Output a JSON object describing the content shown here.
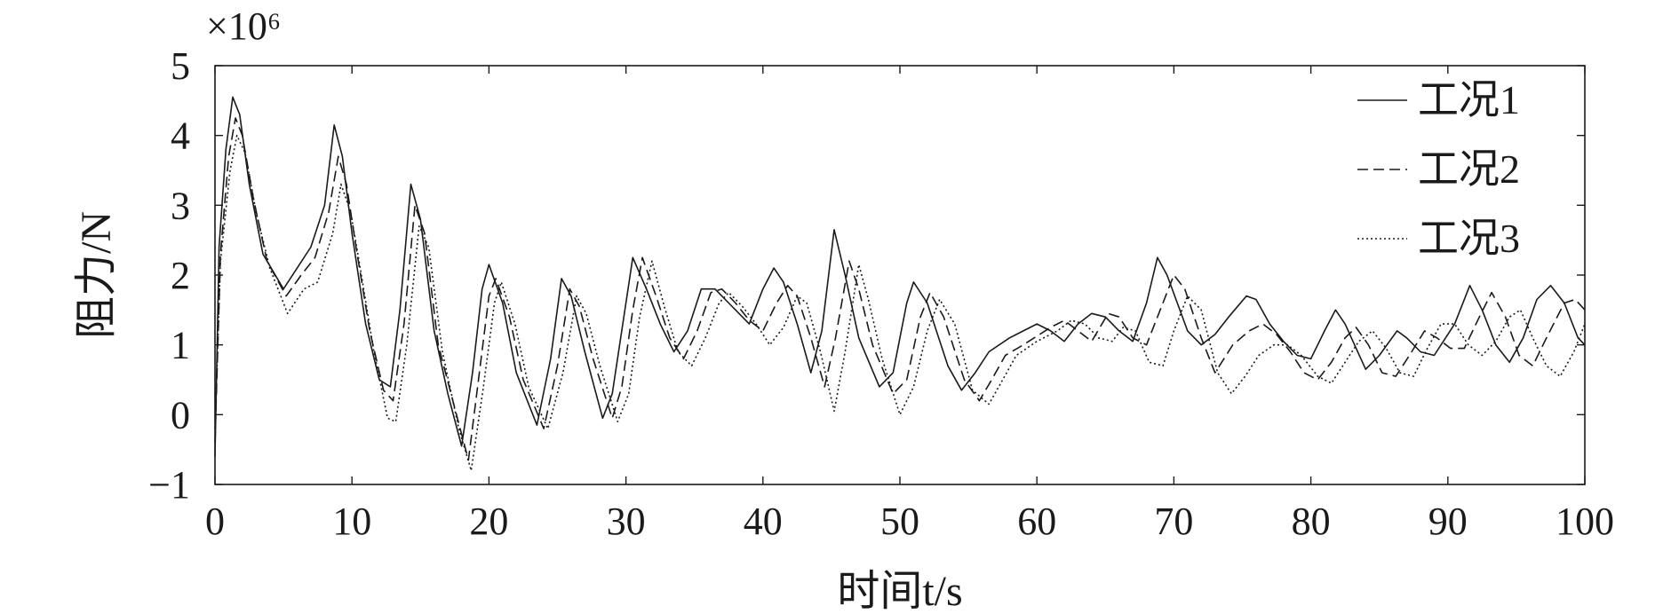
{
  "chart_data": {
    "type": "line",
    "title": "",
    "xlabel": "时间t/s",
    "ylabel": "阻力/N",
    "y_multiplier": "×10⁶",
    "xlim": [
      0,
      100
    ],
    "ylim": [
      -1,
      5
    ],
    "xticks": [
      "0",
      "10",
      "20",
      "30",
      "40",
      "50",
      "60",
      "70",
      "80",
      "90",
      "100"
    ],
    "yticks": [
      "−1",
      "0",
      "1",
      "2",
      "3",
      "4",
      "5"
    ],
    "grid": false,
    "legend_position": "top-right",
    "series": [
      {
        "name": "工况1",
        "style": "solid",
        "points": [
          [
            0,
            -0.6
          ],
          [
            0.3,
            2.4
          ],
          [
            0.8,
            3.8
          ],
          [
            1.3,
            4.55
          ],
          [
            1.8,
            4.3
          ],
          [
            2.5,
            3.3
          ],
          [
            3.5,
            2.3
          ],
          [
            5,
            1.8
          ],
          [
            6,
            2.1
          ],
          [
            7,
            2.4
          ],
          [
            8,
            3.0
          ],
          [
            8.7,
            4.15
          ],
          [
            9.3,
            3.7
          ],
          [
            10,
            2.6
          ],
          [
            11,
            1.3
          ],
          [
            12,
            0.5
          ],
          [
            12.8,
            0.4
          ],
          [
            13.5,
            1.5
          ],
          [
            14.3,
            3.3
          ],
          [
            15,
            2.8
          ],
          [
            16,
            1.2
          ],
          [
            17,
            0.3
          ],
          [
            18,
            -0.45
          ],
          [
            18.8,
            0.6
          ],
          [
            19.5,
            1.8
          ],
          [
            20,
            2.15
          ],
          [
            21,
            1.6
          ],
          [
            22,
            0.6
          ],
          [
            23.5,
            -0.15
          ],
          [
            24.5,
            0.8
          ],
          [
            25.3,
            1.95
          ],
          [
            26,
            1.7
          ],
          [
            27,
            0.9
          ],
          [
            28.3,
            -0.05
          ],
          [
            29,
            0.3
          ],
          [
            30,
            1.6
          ],
          [
            30.5,
            2.25
          ],
          [
            31.5,
            1.8
          ],
          [
            32.5,
            1.3
          ],
          [
            33.5,
            0.9
          ],
          [
            34.5,
            1.2
          ],
          [
            35.5,
            1.8
          ],
          [
            36.5,
            1.8
          ],
          [
            37.5,
            1.6
          ],
          [
            38.5,
            1.4
          ],
          [
            39,
            1.3
          ],
          [
            40,
            1.8
          ],
          [
            40.8,
            2.1
          ],
          [
            41.5,
            1.9
          ],
          [
            42.5,
            1.3
          ],
          [
            43.5,
            0.6
          ],
          [
            44.3,
            1.2
          ],
          [
            45.2,
            2.65
          ],
          [
            46,
            2.0
          ],
          [
            47,
            1.1
          ],
          [
            48.5,
            0.4
          ],
          [
            49.5,
            0.6
          ],
          [
            50.5,
            1.6
          ],
          [
            51,
            1.9
          ],
          [
            52,
            1.6
          ],
          [
            53.5,
            0.7
          ],
          [
            54.5,
            0.35
          ],
          [
            55.5,
            0.6
          ],
          [
            56.5,
            0.9
          ],
          [
            58,
            1.1
          ],
          [
            60,
            1.3
          ],
          [
            61,
            1.2
          ],
          [
            62,
            1.05
          ],
          [
            63,
            1.3
          ],
          [
            64,
            1.45
          ],
          [
            65,
            1.4
          ],
          [
            66,
            1.2
          ],
          [
            67,
            1.05
          ],
          [
            68,
            1.6
          ],
          [
            68.8,
            2.25
          ],
          [
            69.5,
            2.0
          ],
          [
            71,
            1.2
          ],
          [
            72,
            1.0
          ],
          [
            73,
            1.15
          ],
          [
            74,
            1.4
          ],
          [
            75.3,
            1.7
          ],
          [
            76,
            1.65
          ],
          [
            77,
            1.3
          ],
          [
            78,
            1.05
          ],
          [
            79,
            0.85
          ],
          [
            80,
            0.8
          ],
          [
            81,
            1.2
          ],
          [
            81.8,
            1.5
          ],
          [
            82.5,
            1.3
          ],
          [
            84,
            0.65
          ],
          [
            85,
            0.85
          ],
          [
            86.3,
            1.2
          ],
          [
            87,
            1.1
          ],
          [
            88,
            0.9
          ],
          [
            89,
            0.85
          ],
          [
            90.5,
            1.3
          ],
          [
            91.6,
            1.85
          ],
          [
            92.5,
            1.5
          ],
          [
            93.5,
            1.0
          ],
          [
            94.5,
            0.75
          ],
          [
            95.5,
            1.1
          ],
          [
            96.5,
            1.65
          ],
          [
            97.5,
            1.85
          ],
          [
            98.5,
            1.6
          ],
          [
            99.5,
            1.1
          ],
          [
            100,
            1.0
          ]
        ]
      },
      {
        "name": "工况2",
        "style": "dashed",
        "points": [
          [
            0,
            -0.4
          ],
          [
            0.4,
            2.3
          ],
          [
            1,
            3.7
          ],
          [
            1.5,
            4.25
          ],
          [
            2,
            4.0
          ],
          [
            2.8,
            3.1
          ],
          [
            3.8,
            2.2
          ],
          [
            5.2,
            1.7
          ],
          [
            6.3,
            2.0
          ],
          [
            7.3,
            2.25
          ],
          [
            8.3,
            2.9
          ],
          [
            9,
            3.7
          ],
          [
            9.6,
            3.3
          ],
          [
            10.3,
            2.4
          ],
          [
            11.3,
            1.2
          ],
          [
            12.3,
            0.35
          ],
          [
            13,
            0.2
          ],
          [
            13.8,
            1.3
          ],
          [
            14.6,
            3.0
          ],
          [
            15.3,
            2.6
          ],
          [
            16.3,
            1.0
          ],
          [
            17.5,
            0.1
          ],
          [
            18.5,
            -0.65
          ],
          [
            19.3,
            0.6
          ],
          [
            20,
            1.7
          ],
          [
            20.5,
            1.95
          ],
          [
            21.5,
            1.4
          ],
          [
            22.5,
            0.5
          ],
          [
            24,
            -0.2
          ],
          [
            25,
            0.7
          ],
          [
            25.9,
            1.8
          ],
          [
            26.6,
            1.55
          ],
          [
            27.6,
            0.8
          ],
          [
            29,
            -0.05
          ],
          [
            29.7,
            0.4
          ],
          [
            30.5,
            1.5
          ],
          [
            31.2,
            2.25
          ],
          [
            32.2,
            1.7
          ],
          [
            33.2,
            1.1
          ],
          [
            34.2,
            0.8
          ],
          [
            35.2,
            1.2
          ],
          [
            36.2,
            1.75
          ],
          [
            37,
            1.8
          ],
          [
            38,
            1.6
          ],
          [
            39,
            1.35
          ],
          [
            40,
            1.2
          ],
          [
            41,
            1.6
          ],
          [
            41.8,
            1.85
          ],
          [
            42.5,
            1.7
          ],
          [
            43.5,
            1.1
          ],
          [
            44.5,
            0.4
          ],
          [
            45.3,
            1.1
          ],
          [
            46.3,
            2.2
          ],
          [
            47,
            1.8
          ],
          [
            48,
            1.0
          ],
          [
            49.5,
            0.3
          ],
          [
            50.5,
            0.5
          ],
          [
            51.5,
            1.4
          ],
          [
            52.2,
            1.75
          ],
          [
            53.2,
            1.4
          ],
          [
            54.7,
            0.5
          ],
          [
            55.8,
            0.2
          ],
          [
            56.7,
            0.5
          ],
          [
            57.7,
            0.85
          ],
          [
            59,
            1.0
          ],
          [
            61,
            1.25
          ],
          [
            62,
            1.35
          ],
          [
            63,
            1.2
          ],
          [
            64,
            1.05
          ],
          [
            65.2,
            1.45
          ],
          [
            66,
            1.4
          ],
          [
            67,
            1.1
          ],
          [
            68,
            1.0
          ],
          [
            69,
            1.5
          ],
          [
            70,
            2.0
          ],
          [
            70.8,
            1.8
          ],
          [
            72,
            1.1
          ],
          [
            73,
            0.6
          ],
          [
            74.3,
            1.0
          ],
          [
            75.5,
            1.2
          ],
          [
            76.5,
            1.3
          ],
          [
            77.5,
            1.15
          ],
          [
            78.5,
            0.9
          ],
          [
            79.5,
            0.6
          ],
          [
            80.5,
            0.5
          ],
          [
            81.5,
            0.75
          ],
          [
            82.5,
            1.1
          ],
          [
            83.3,
            1.25
          ],
          [
            84.2,
            1.0
          ],
          [
            85.2,
            0.6
          ],
          [
            86.2,
            0.55
          ],
          [
            87.2,
            0.85
          ],
          [
            88.3,
            1.2
          ],
          [
            89.2,
            1.1
          ],
          [
            90.2,
            0.95
          ],
          [
            91.2,
            0.95
          ],
          [
            92.3,
            1.4
          ],
          [
            93.2,
            1.75
          ],
          [
            94.2,
            1.4
          ],
          [
            95.2,
            0.85
          ],
          [
            96.2,
            0.7
          ],
          [
            97.2,
            1.1
          ],
          [
            98.5,
            1.6
          ],
          [
            99.3,
            1.65
          ],
          [
            100,
            1.5
          ]
        ]
      },
      {
        "name": "工况3",
        "style": "dotted",
        "points": [
          [
            0,
            -0.2
          ],
          [
            0.4,
            2.2
          ],
          [
            1.1,
            3.5
          ],
          [
            1.6,
            4.0
          ],
          [
            2.2,
            3.75
          ],
          [
            3,
            2.9
          ],
          [
            4,
            2.1
          ],
          [
            5.3,
            1.45
          ],
          [
            6.5,
            1.8
          ],
          [
            7.5,
            1.9
          ],
          [
            8.6,
            2.6
          ],
          [
            9.2,
            3.3
          ],
          [
            9.9,
            2.9
          ],
          [
            10.6,
            2.1
          ],
          [
            11.6,
            0.9
          ],
          [
            12.6,
            -0.05
          ],
          [
            13.2,
            -0.1
          ],
          [
            14,
            1.0
          ],
          [
            14.9,
            2.7
          ],
          [
            15.6,
            2.4
          ],
          [
            16.6,
            0.9
          ],
          [
            17.8,
            -0.2
          ],
          [
            18.7,
            -0.8
          ],
          [
            19.6,
            0.4
          ],
          [
            20.4,
            1.6
          ],
          [
            20.9,
            1.9
          ],
          [
            21.9,
            1.3
          ],
          [
            22.9,
            0.4
          ],
          [
            24.3,
            -0.2
          ],
          [
            25.4,
            0.6
          ],
          [
            26.4,
            1.7
          ],
          [
            27.1,
            1.45
          ],
          [
            28.1,
            0.7
          ],
          [
            29.4,
            -0.1
          ],
          [
            30.2,
            0.3
          ],
          [
            31,
            1.4
          ],
          [
            31.9,
            2.2
          ],
          [
            32.8,
            1.55
          ],
          [
            33.8,
            0.9
          ],
          [
            34.8,
            0.7
          ],
          [
            35.8,
            1.1
          ],
          [
            36.8,
            1.6
          ],
          [
            37.5,
            1.75
          ],
          [
            38.5,
            1.55
          ],
          [
            39.5,
            1.3
          ],
          [
            40.5,
            1.0
          ],
          [
            41.5,
            1.25
          ],
          [
            42.5,
            1.7
          ],
          [
            43.2,
            1.6
          ],
          [
            44.2,
            0.9
          ],
          [
            45.2,
            0.05
          ],
          [
            46,
            0.9
          ],
          [
            47,
            2.15
          ],
          [
            47.7,
            1.65
          ],
          [
            48.7,
            0.8
          ],
          [
            50,
            0.0
          ],
          [
            51,
            0.4
          ],
          [
            52,
            1.2
          ],
          [
            52.9,
            1.65
          ],
          [
            54,
            1.3
          ],
          [
            55.3,
            0.35
          ],
          [
            56.5,
            0.15
          ],
          [
            57.5,
            0.5
          ],
          [
            58.5,
            0.85
          ],
          [
            60,
            1.05
          ],
          [
            61.5,
            1.2
          ],
          [
            62.5,
            1.35
          ],
          [
            63.5,
            1.3
          ],
          [
            64.5,
            1.1
          ],
          [
            65.5,
            1.05
          ],
          [
            66.3,
            1.25
          ],
          [
            67.2,
            1.2
          ],
          [
            68.2,
            0.75
          ],
          [
            69.2,
            0.7
          ],
          [
            70,
            1.2
          ],
          [
            71,
            1.7
          ],
          [
            72,
            1.5
          ],
          [
            73.2,
            0.6
          ],
          [
            74.2,
            0.3
          ],
          [
            75.2,
            0.55
          ],
          [
            76.2,
            0.85
          ],
          [
            77.3,
            1.0
          ],
          [
            78.3,
            1.0
          ],
          [
            79.3,
            0.85
          ],
          [
            80.5,
            0.55
          ],
          [
            81.5,
            0.45
          ],
          [
            82.5,
            0.75
          ],
          [
            83.5,
            1.05
          ],
          [
            84.5,
            1.2
          ],
          [
            85.5,
            0.95
          ],
          [
            86.5,
            0.6
          ],
          [
            87.5,
            0.55
          ],
          [
            88.5,
            0.95
          ],
          [
            89.5,
            1.3
          ],
          [
            90.5,
            1.3
          ],
          [
            91.5,
            1.0
          ],
          [
            92.5,
            0.85
          ],
          [
            93.5,
            1.05
          ],
          [
            94.5,
            1.4
          ],
          [
            95.3,
            1.5
          ],
          [
            96.2,
            1.1
          ],
          [
            97.2,
            0.7
          ],
          [
            98.2,
            0.55
          ],
          [
            99.2,
            0.9
          ],
          [
            100,
            1.3
          ]
        ]
      }
    ]
  }
}
